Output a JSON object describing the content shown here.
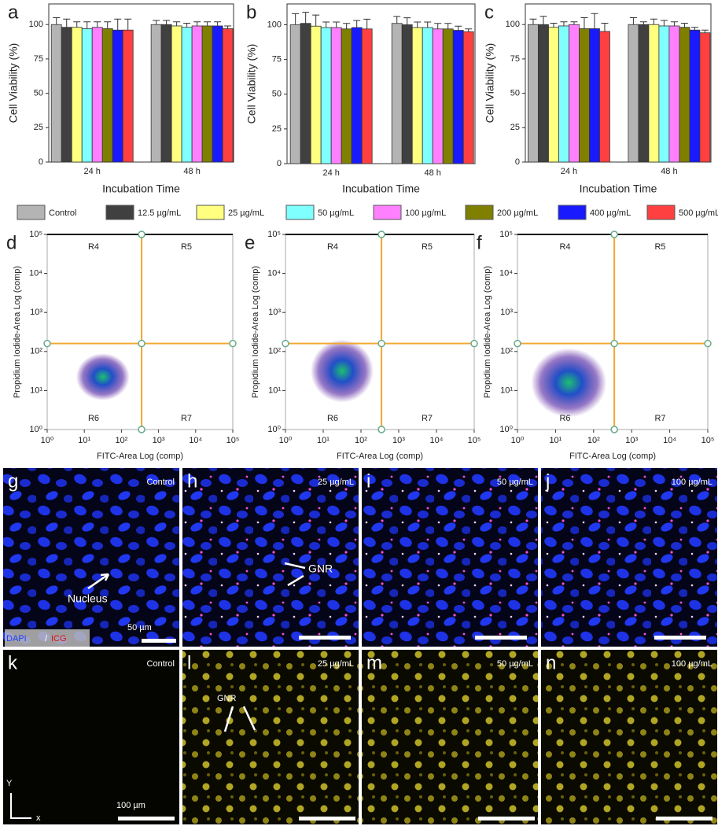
{
  "chart_data": [
    {
      "type": "bar",
      "panel": "a",
      "ylabel": "Cell Viability (%)",
      "xlabel": "Incubation Time",
      "categories": [
        "24 h",
        "48 h"
      ],
      "ylim": [
        0,
        115
      ],
      "yticks": [
        0,
        25,
        50,
        75,
        100
      ],
      "series": [
        {
          "name": "Control",
          "color": "#b4b4b4",
          "values": [
            100,
            100
          ],
          "errors": [
            5,
            3
          ]
        },
        {
          "name": "12.5 µg/mL",
          "color": "#404040",
          "values": [
            98,
            100
          ],
          "errors": [
            6,
            3
          ]
        },
        {
          "name": "25 µg/mL",
          "color": "#ffff80",
          "values": [
            98,
            99
          ],
          "errors": [
            4,
            3
          ]
        },
        {
          "name": "50 µg/mL",
          "color": "#80ffff",
          "values": [
            97,
            98
          ],
          "errors": [
            5,
            3
          ]
        },
        {
          "name": "100 µg/mL",
          "color": "#ff80ff",
          "values": [
            98,
            99
          ],
          "errors": [
            4,
            3
          ]
        },
        {
          "name": "200 µg/mL",
          "color": "#808000",
          "values": [
            97,
            99
          ],
          "errors": [
            5,
            3
          ]
        },
        {
          "name": "400 µg/mL",
          "color": "#1a1aff",
          "values": [
            96,
            99
          ],
          "errors": [
            8,
            3
          ]
        },
        {
          "name": "500 µg/mL",
          "color": "#ff4040",
          "values": [
            96,
            97
          ],
          "errors": [
            8,
            2
          ]
        }
      ]
    },
    {
      "type": "bar",
      "panel": "b",
      "ylabel": "Cell Viability (%)",
      "xlabel": "Incubation Time",
      "categories": [
        "24 h",
        "48 h"
      ],
      "ylim": [
        0,
        115
      ],
      "yticks": [
        0,
        25,
        50,
        75,
        100
      ],
      "series": [
        {
          "values": [
            100,
            101
          ],
          "errors": [
            8,
            5
          ]
        },
        {
          "values": [
            101,
            100
          ],
          "errors": [
            8,
            5
          ]
        },
        {
          "values": [
            99,
            98
          ],
          "errors": [
            8,
            4
          ]
        },
        {
          "values": [
            98,
            98
          ],
          "errors": [
            4,
            4
          ]
        },
        {
          "values": [
            98,
            97
          ],
          "errors": [
            4,
            4
          ]
        },
        {
          "values": [
            97,
            97
          ],
          "errors": [
            4,
            4
          ]
        },
        {
          "values": [
            98,
            96
          ],
          "errors": [
            5,
            3
          ]
        },
        {
          "values": [
            97,
            95
          ],
          "errors": [
            7,
            2
          ]
        }
      ]
    },
    {
      "type": "bar",
      "panel": "c",
      "ylabel": "Cell Viability (%)",
      "xlabel": "Incubation Time",
      "categories": [
        "24 h",
        "48 h"
      ],
      "ylim": [
        0,
        115
      ],
      "yticks": [
        0,
        25,
        50,
        75,
        100
      ],
      "series": [
        {
          "values": [
            100,
            100
          ],
          "errors": [
            4,
            5
          ]
        },
        {
          "values": [
            100,
            100
          ],
          "errors": [
            6,
            2
          ]
        },
        {
          "values": [
            98,
            100
          ],
          "errors": [
            3,
            4
          ]
        },
        {
          "values": [
            99,
            99
          ],
          "errors": [
            3,
            4
          ]
        },
        {
          "values": [
            100,
            99
          ],
          "errors": [
            2,
            3
          ]
        },
        {
          "values": [
            97,
            98
          ],
          "errors": [
            8,
            3
          ]
        },
        {
          "values": [
            97,
            96
          ],
          "errors": [
            11,
            2
          ]
        },
        {
          "values": [
            95,
            94
          ],
          "errors": [
            6,
            2
          ]
        }
      ]
    },
    {
      "type": "flow",
      "panel": "d",
      "xlabel": "FITC-Area  Log (comp)",
      "ylabel": "Propidium Iodide-Area  Log (comp)",
      "log": true,
      "xlim": [
        1,
        100000
      ],
      "ylim": [
        1,
        100000
      ],
      "xticks": [
        {
          "value": 1,
          "label": "10⁰"
        },
        {
          "value": 10,
          "label": "10¹"
        },
        {
          "value": 100,
          "label": "10²"
        },
        {
          "value": 1000,
          "label": "10³"
        },
        {
          "value": 10000,
          "label": "10⁴"
        },
        {
          "value": 100000,
          "label": "10⁵"
        }
      ],
      "yticks": [
        {
          "value": 1,
          "label": "10⁰"
        },
        {
          "value": 10,
          "label": "10¹"
        },
        {
          "value": 100,
          "label": "10²"
        },
        {
          "value": 1000,
          "label": "10³"
        },
        {
          "value": 10000,
          "label": "10⁴"
        },
        {
          "value": 100000,
          "label": "10⁵"
        }
      ],
      "gates": {
        "x": 350,
        "y": 160
      },
      "quadrants": [
        "R4",
        "R5",
        "R6",
        "R7"
      ]
    },
    {
      "type": "flow",
      "panel": "e",
      "xlabel": "FITC-Area  Log (comp)",
      "ylabel": "Propidium Iodide-Area  Log (comp)",
      "log": true,
      "xlim": [
        1,
        100000
      ],
      "ylim": [
        1,
        100000
      ],
      "xticks": [
        {
          "value": 1,
          "label": "10⁰"
        },
        {
          "value": 10,
          "label": "10¹"
        },
        {
          "value": 100,
          "label": "10²"
        },
        {
          "value": 1000,
          "label": "10³"
        },
        {
          "value": 10000,
          "label": "10⁴"
        },
        {
          "value": 100000,
          "label": "10⁵"
        }
      ],
      "yticks": [
        {
          "value": 1,
          "label": "10⁰"
        },
        {
          "value": 10,
          "label": "10¹"
        },
        {
          "value": 100,
          "label": "10²"
        },
        {
          "value": 1000,
          "label": "10³"
        },
        {
          "value": 10000,
          "label": "10⁴"
        },
        {
          "value": 100000,
          "label": "10⁵"
        }
      ],
      "gates": {
        "x": 350,
        "y": 160
      },
      "quadrants": [
        "R4",
        "R5",
        "R6",
        "R7"
      ]
    },
    {
      "type": "flow",
      "panel": "f",
      "xlabel": "FITC-Area  Log (comp)",
      "ylabel": "Propidium Iodide-Area  Log (comp)",
      "log": true,
      "xlim": [
        1,
        100000
      ],
      "ylim": [
        1,
        100000
      ],
      "xticks": [
        {
          "value": 1,
          "label": "10⁰"
        },
        {
          "value": 10,
          "label": "10¹"
        },
        {
          "value": 100,
          "label": "10²"
        },
        {
          "value": 1000,
          "label": "10³"
        },
        {
          "value": 10000,
          "label": "10⁴"
        },
        {
          "value": 100000,
          "label": "10⁵"
        }
      ],
      "yticks": [
        {
          "value": 1,
          "label": "10⁰"
        },
        {
          "value": 10,
          "label": "10¹"
        },
        {
          "value": 100,
          "label": "10²"
        },
        {
          "value": 1000,
          "label": "10³"
        },
        {
          "value": 10000,
          "label": "10⁴"
        },
        {
          "value": 100000,
          "label": "10⁵"
        }
      ],
      "gates": {
        "x": 350,
        "y": 160
      },
      "quadrants": [
        "R4",
        "R5",
        "R6",
        "R7"
      ]
    }
  ],
  "images": [
    {
      "panel": "g",
      "label": "Control"
    },
    {
      "panel": "h",
      "label": "25 µg/mL"
    },
    {
      "panel": "i",
      "label": "50 µg/mL"
    },
    {
      "panel": "j",
      "label": "100 µg/mL"
    },
    {
      "panel": "k",
      "label": "Control"
    },
    {
      "panel": "l",
      "label": "25 µg/mL"
    },
    {
      "panel": "m",
      "label": "50 µg/mL"
    },
    {
      "panel": "n",
      "label": "100 µg/mL"
    }
  ],
  "annotations": {
    "nucleus": "Nucleus",
    "gnr_top": "GNR",
    "scale_top": "50 µm",
    "dapi": "DAPI",
    "slash": "/",
    "icg": "ICG",
    "gnr_bottom": "GNR",
    "scale_bottom": "100 µm",
    "axis_y": "Y",
    "axis_x": "x"
  }
}
